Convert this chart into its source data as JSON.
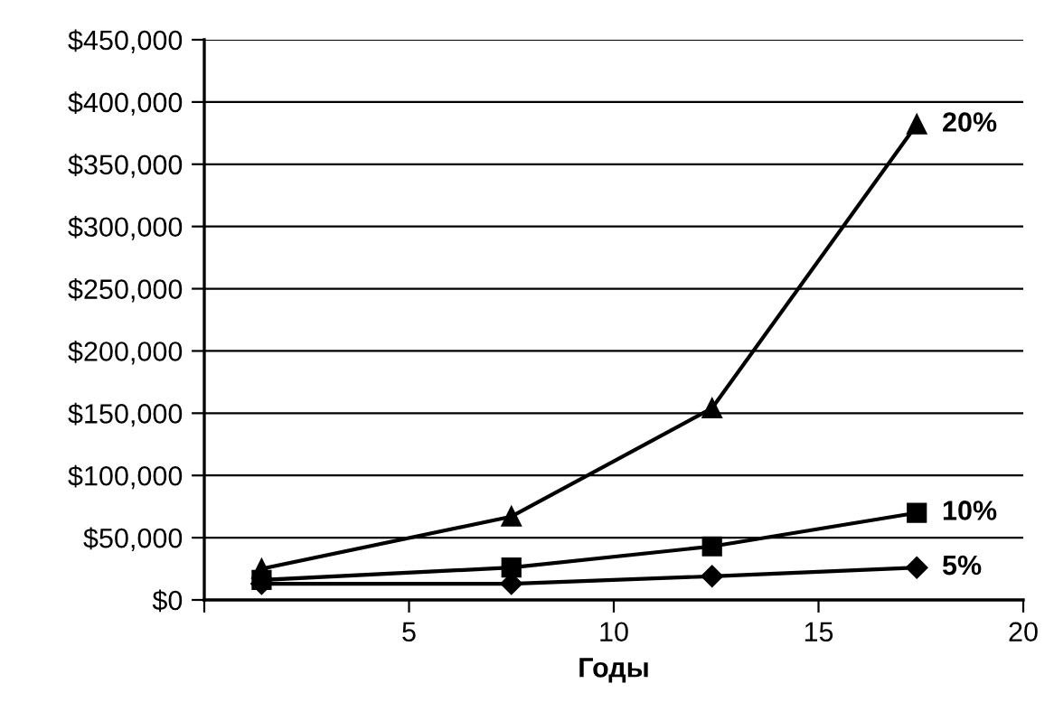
{
  "chart_data": {
    "type": "line",
    "xlabel": "Годы",
    "series": [
      {
        "name": "20%",
        "color": "#000000",
        "marker": "triangle",
        "x": [
          1.4,
          7.5,
          12.4,
          17.4
        ],
        "values": [
          25000,
          67000,
          154000,
          382000
        ]
      },
      {
        "name": "10%",
        "color": "#000000",
        "marker": "square",
        "x": [
          1.4,
          7.5,
          12.4,
          17.4
        ],
        "values": [
          16000,
          26000,
          43000,
          70000
        ]
      },
      {
        "name": "5%",
        "color": "#000000",
        "marker": "diamond",
        "x": [
          1.4,
          7.5,
          12.4,
          17.4
        ],
        "values": [
          13000,
          13000,
          19000,
          26000
        ]
      }
    ],
    "xlim": [
      0,
      20
    ],
    "xticks": [
      {
        "value": 0,
        "label": null
      },
      5,
      10,
      15,
      20
    ],
    "ylim": [
      0,
      450000
    ],
    "yticks": [
      {
        "value": 0,
        "label": "$0"
      },
      {
        "value": 50000,
        "label": "$50,000"
      },
      {
        "value": 100000,
        "label": "$100,000"
      },
      {
        "value": 150000,
        "label": "$150,000"
      },
      {
        "value": 200000,
        "label": "$200,000"
      },
      {
        "value": 250000,
        "label": "$250,000"
      },
      {
        "value": 300000,
        "label": "$300,000"
      },
      {
        "value": 350000,
        "label": "$350,000"
      },
      {
        "value": 400000,
        "label": "$400,000"
      },
      {
        "value": 450000,
        "label": "$450,000"
      }
    ],
    "grid": "y",
    "legend": false,
    "line_style": "solid"
  }
}
